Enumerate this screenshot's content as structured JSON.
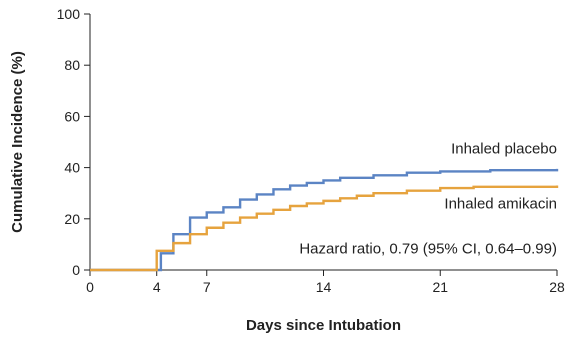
{
  "chart_data": {
    "type": "line",
    "step": true,
    "xlabel": "Days since Intubation",
    "ylabel": "Cumulative Incidence (%)",
    "xlim": [
      0,
      28
    ],
    "ylim": [
      0,
      100
    ],
    "xticks": [
      0,
      4,
      7,
      14,
      21,
      28
    ],
    "yticks": [
      0,
      20,
      40,
      60,
      80,
      100
    ],
    "grid": false,
    "series": [
      {
        "name": "Inhaled placebo",
        "color": "#5b84c4",
        "x": [
          0,
          4,
          4.25,
          5,
          6,
          7,
          8,
          9,
          10,
          11,
          12,
          13,
          14,
          15,
          17,
          19,
          21,
          24,
          28
        ],
        "y": [
          0,
          0,
          6.5,
          14,
          20.5,
          22.5,
          24.5,
          27.5,
          29.5,
          31.5,
          33,
          34,
          35,
          36,
          37,
          38,
          38.5,
          39,
          39.5
        ]
      },
      {
        "name": "Inhaled amikacin",
        "color": "#e6a33e",
        "x": [
          0,
          4,
          5,
          6,
          7,
          8,
          9,
          10,
          11,
          12,
          13,
          14,
          15,
          16,
          17,
          19,
          21,
          23,
          28
        ],
        "y": [
          0,
          7.5,
          10.5,
          14,
          16.5,
          18.5,
          20.5,
          22,
          23.5,
          25,
          26,
          27,
          28,
          29,
          30,
          31,
          32,
          32.5,
          33
        ]
      }
    ],
    "annotations": [
      {
        "text": "Hazard ratio, 0.79 (95% CI, 0.64–0.99)"
      }
    ]
  }
}
